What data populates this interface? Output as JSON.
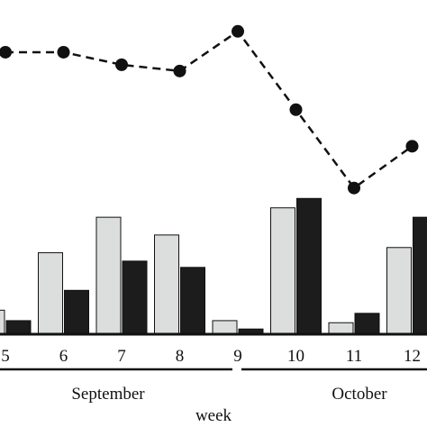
{
  "chart_data": {
    "type": "bar",
    "categories": [
      "5",
      "6",
      "7",
      "8",
      "9",
      "10",
      "11",
      "12"
    ],
    "series": [
      {
        "kind": "bar",
        "values": [
          2.3,
          7.8,
          11.2,
          9.5,
          1.3,
          12.1,
          1.1,
          8.3
        ]
      },
      {
        "kind": "bar",
        "values": [
          1.3,
          4.2,
          7.0,
          6.4,
          0.5,
          13.0,
          2.0,
          11.2
        ]
      },
      {
        "kind": "line",
        "style": "dashed",
        "marker": "circle",
        "values": [
          27.0,
          27.0,
          25.8,
          25.2,
          29.0,
          21.5,
          14.0,
          18.0
        ]
      }
    ],
    "xlabel": "week",
    "month_labels": [
      "September",
      "October"
    ],
    "ylim": [
      0,
      32
    ],
    "grid": false,
    "legend": "none"
  },
  "colors": {
    "bar_series_1": "#dcdedd",
    "bar_series_2": "#1c1c1c",
    "line": "#111111",
    "bar_outline": "#111111"
  }
}
